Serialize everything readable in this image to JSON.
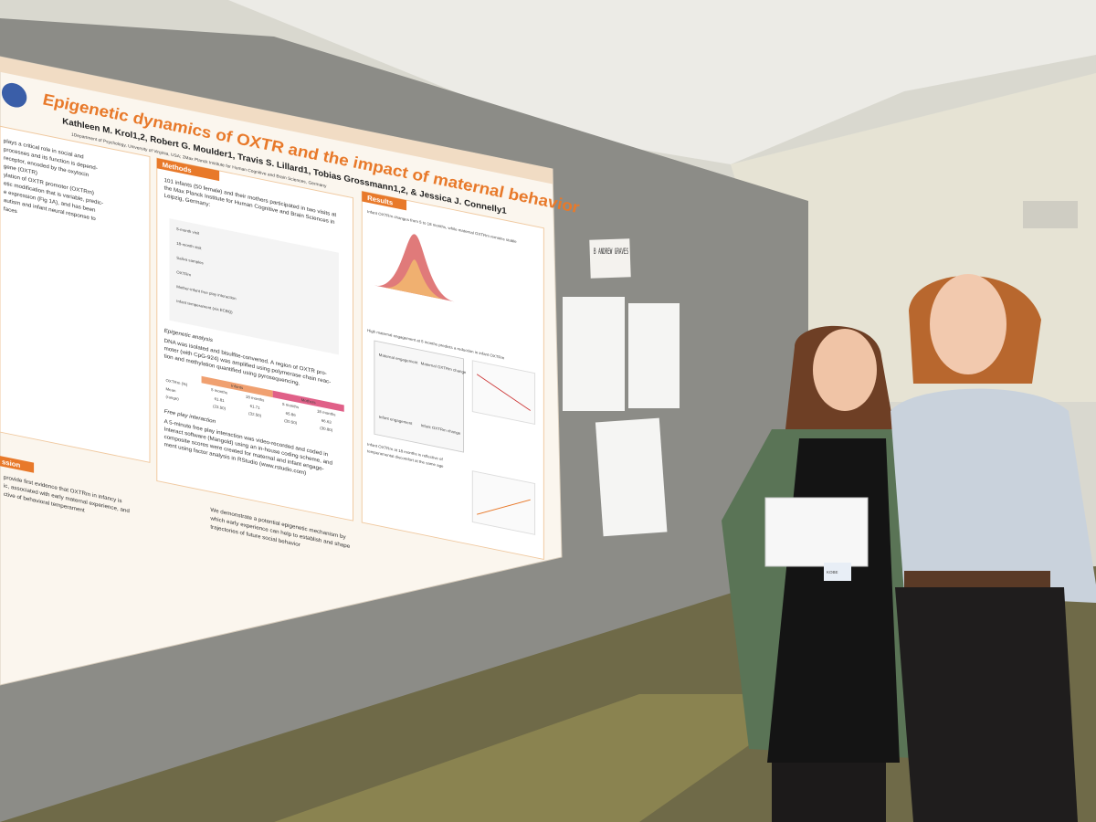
{
  "poster": {
    "title": "Epigenetic dynamics of OXTR and the impact of maternal behavior",
    "authors": "Kathleen M. Krol1,2, Robert G. Moulder1, Travis S. Lillard1, Tobias Grossmann1,2, & Jessica J. Connelly1",
    "affiliation": "1Department of Psychology, University of Virginia, USA; 2Max Planck Institute for Human Cognitive and Brain Sciences, Germany",
    "methods_heading": "Methods",
    "results_heading": "Results",
    "discussion_heading": "ssion",
    "intro": [
      "plays a critical role in social and",
      "processes and its function is depend-",
      "receptor, encoded by the oxytocin",
      "gene (OXTR)",
      "ylation of OXTR promoter (OXTRm)",
      "etic modification that is variable, predic-",
      "e expression (Fig 1A), and has been",
      "autism and infant neural response to",
      "faces"
    ],
    "methods_text": [
      "101 infants (50 female) and their mothers participated in two visits at",
      "the Max Planck Institute for Human Cognitive and Brain Sciences in",
      "Leipzig, Germany:"
    ],
    "timeline": [
      "5-month visit",
      "18-month visit",
      "Saliva samples",
      "OXTRm",
      "Mother-infant free play interaction",
      "Infant temperament (via ECBQ)"
    ],
    "epigenetic_heading": "Epigenetic analysis",
    "epigenetic_text": [
      "DNA was isolated and bisulfite-converted. A region of OXTR pro-",
      "moter (with CpG-924) was amplified using polymerase chain reac-",
      "tion and methylation quantified using pyrosequencing."
    ],
    "table": {
      "groups": [
        "Infants",
        "Mothers"
      ],
      "columns": [
        "OXTRm (%)",
        "5 months",
        "18 months",
        "5 months",
        "18 months"
      ],
      "rows": [
        [
          "Mean",
          "61.81",
          "61.71",
          "65.86",
          "66.63"
        ],
        [
          "(range)",
          "(23.50)",
          "(32.50)",
          "(30.50)",
          "(30.80)"
        ]
      ]
    },
    "free_play_heading": "Free play interaction",
    "free_play_text": [
      "A 5-minute free play interaction was video-recorded and coded in",
      "Interact software (Mangold) using an in-house coding scheme, and",
      "composite scores were created for maternal and infant engage-",
      "ment using factor analysis in RStudio (www.rstudio.com)"
    ],
    "results_text": [
      "Infant OXTRm changes from 5 to 18 months, while maternal OXTRm remains stable",
      "High maternal engagement at 5 months predicts a reduction in infant OXTRm",
      "Infant OXTRm at 18 months is reflective of",
      "temperamental discomfort at the same age"
    ],
    "diagram": [
      "Maternal engagement",
      "Infant engagement",
      "Maternal OXTRm change",
      "Infant OXTRm change"
    ],
    "conclusion": [
      "We demonstrate a potential epigenetic mechanism by",
      "which early experience can help to establish and shape",
      "trajectories of future social behavior"
    ],
    "discussion": [
      "provide first evidence that OXTRm in infancy is",
      "ic, associated with early maternal experience, and",
      "ctive of behavioral temperament"
    ]
  },
  "sign": "B ANDREW GRAVES",
  "envelope_tag": "KOBE"
}
